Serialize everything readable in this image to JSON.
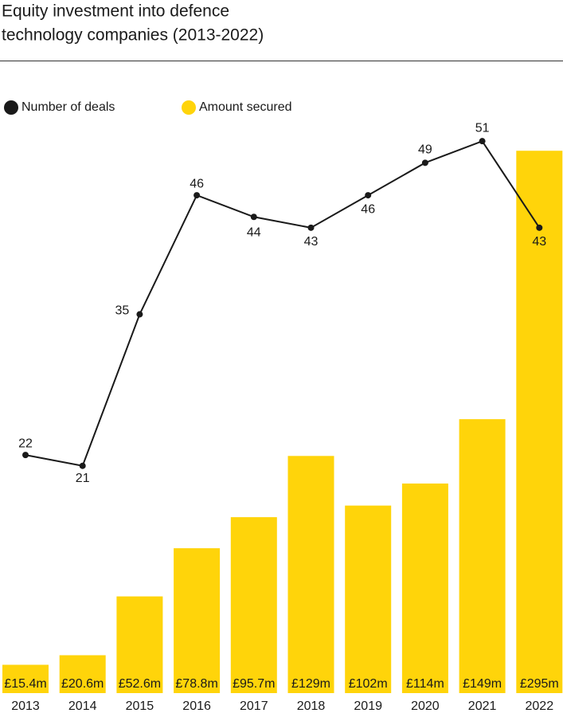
{
  "chart_data": {
    "type": "bar-line",
    "title": [
      "Equity investment into defence",
      "technology companies (2013-2022)"
    ],
    "categories": [
      "2013",
      "2014",
      "2015",
      "2016",
      "2017",
      "2018",
      "2019",
      "2020",
      "2021",
      "2022"
    ],
    "series": [
      {
        "name": "Number of deals",
        "type": "line",
        "color": "#1a1a1a",
        "axis": "y2",
        "values": [
          22,
          21,
          35,
          46,
          44,
          43,
          46,
          49,
          51,
          43
        ]
      },
      {
        "name": "Amount secured",
        "type": "bar",
        "color": "#ffd40a",
        "values": [
          15.4,
          20.6,
          52.6,
          78.8,
          95.7,
          129,
          102,
          114,
          149,
          295
        ],
        "value_labels": [
          "£15.4m",
          "£20.6m",
          "£52.6m",
          "£78.8m",
          "£95.7m",
          "£129m",
          "£102m",
          "£114m",
          "£149m",
          "£295m"
        ]
      }
    ],
    "ylim": [
      0,
      312
    ],
    "y2lim": [
      0,
      53
    ]
  }
}
